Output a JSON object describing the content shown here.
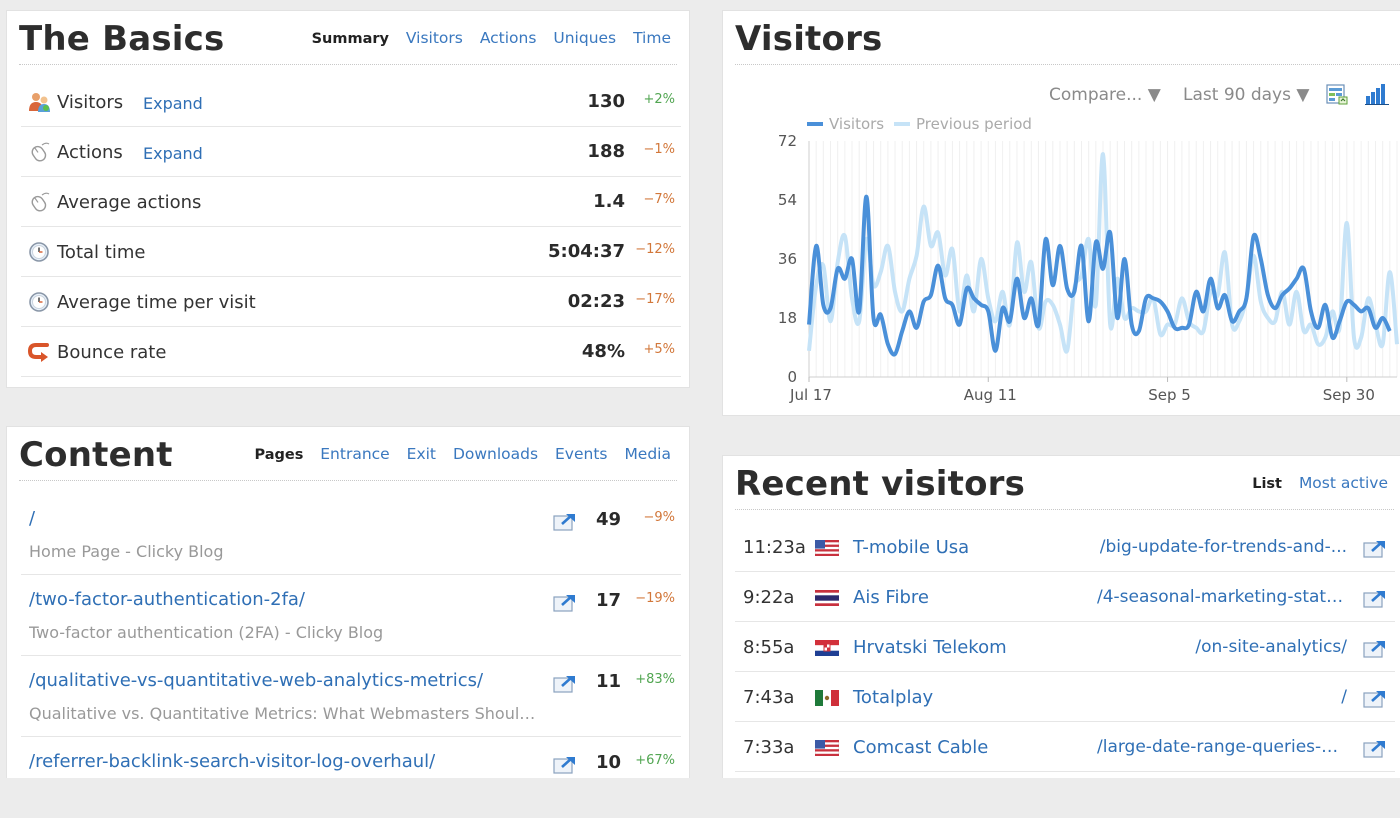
{
  "basics": {
    "title": "The Basics",
    "tabs": [
      {
        "label": "Summary",
        "active": true
      },
      {
        "label": "Visitors",
        "active": false
      },
      {
        "label": "Actions",
        "active": false
      },
      {
        "label": "Uniques",
        "active": false
      },
      {
        "label": "Time",
        "active": false
      }
    ],
    "rows": [
      {
        "icon": "visitors-icon",
        "label": "Visitors",
        "expand": "Expand",
        "value": "130",
        "change": "+2%",
        "trend": "up"
      },
      {
        "icon": "mouse-icon",
        "label": "Actions",
        "expand": "Expand",
        "value": "188",
        "change": "−1%",
        "trend": "down"
      },
      {
        "icon": "mouse-icon",
        "label": "Average actions",
        "expand": "",
        "value": "1.4",
        "change": "−7%",
        "trend": "down"
      },
      {
        "icon": "clock-icon",
        "label": "Total time",
        "expand": "",
        "value": "5:04:37",
        "change": "−12%",
        "trend": "down"
      },
      {
        "icon": "clock-icon",
        "label": "Average time per visit",
        "expand": "",
        "value": "02:23",
        "change": "−17%",
        "trend": "down"
      },
      {
        "icon": "bounce-arrow-icon",
        "label": "Bounce rate",
        "expand": "",
        "value": "48%",
        "change": "+5%",
        "trend": "down"
      }
    ]
  },
  "visitors_panel": {
    "title": "Visitors",
    "compare_label": "Compare... ▼",
    "range_label": "Last 90 days ▼",
    "export_icon": "export-icon",
    "chart_type_icon": "bar-chart-icon"
  },
  "chart_data": {
    "type": "line",
    "title": "",
    "xlabel": "",
    "ylabel": "",
    "ylim": [
      0,
      72
    ],
    "yticks": [
      0,
      18,
      36,
      54,
      72
    ],
    "xtick_labels": [
      "Jul 17",
      "Aug 11",
      "Sep 5",
      "Sep 30"
    ],
    "xtick_index": [
      0,
      25,
      50,
      75
    ],
    "grid": "vertical-days",
    "legend_position": "top-left",
    "colors": {
      "visitors": "#4a90d9",
      "previous": "#c6e3f7"
    },
    "series": [
      {
        "name": "Visitors",
        "values": [
          16,
          40,
          22,
          21,
          33,
          30,
          36,
          20,
          55,
          18,
          19,
          10,
          7,
          14,
          20,
          15,
          23,
          25,
          34,
          24,
          22,
          16,
          27,
          24,
          22,
          20,
          8,
          21,
          17,
          30,
          18,
          24,
          16,
          42,
          28,
          40,
          27,
          26,
          40,
          17,
          41,
          33,
          44,
          18,
          36,
          16,
          14,
          24,
          24,
          23,
          20,
          15,
          15,
          16,
          26,
          20,
          30,
          21,
          25,
          17,
          20,
          24,
          43,
          36,
          25,
          21,
          25,
          27,
          30,
          33,
          20,
          15,
          22,
          12,
          17,
          23,
          22,
          20,
          21,
          15,
          18,
          14
        ]
      },
      {
        "name": "Previous period",
        "values": [
          8,
          28,
          34,
          17,
          35,
          43,
          24,
          17,
          42,
          28,
          32,
          40,
          26,
          20,
          30,
          37,
          52,
          40,
          44,
          31,
          39,
          20,
          31,
          20,
          36,
          24,
          17,
          26,
          16,
          41,
          26,
          35,
          15,
          23,
          22,
          16,
          8,
          27,
          31,
          42,
          22,
          68,
          16,
          30,
          18,
          21,
          20,
          20,
          24,
          13,
          16,
          16,
          24,
          17,
          15,
          14,
          26,
          25,
          38,
          16,
          17,
          24,
          37,
          23,
          18,
          17,
          26,
          16,
          26,
          14,
          16,
          10,
          12,
          20,
          15,
          47,
          12,
          12,
          24,
          16,
          10,
          32,
          10
        ]
      }
    ]
  },
  "content": {
    "title": "Content",
    "tabs": [
      {
        "label": "Pages",
        "active": true
      },
      {
        "label": "Entrance",
        "active": false
      },
      {
        "label": "Exit",
        "active": false
      },
      {
        "label": "Downloads",
        "active": false
      },
      {
        "label": "Events",
        "active": false
      },
      {
        "label": "Media",
        "active": false
      }
    ],
    "rows": [
      {
        "path": "/",
        "title": "Home Page - Clicky Blog",
        "value": "49",
        "change": "−9%",
        "trend": "down"
      },
      {
        "path": "/two-factor-authentication-2fa/",
        "title": "Two-factor authentication (2FA) - Clicky Blog",
        "value": "17",
        "change": "−19%",
        "trend": "down"
      },
      {
        "path": "/qualitative-vs-quantitative-web-analytics-metrics/",
        "title": "Qualitative vs. Quantitative Metrics: What Webmasters Should...",
        "value": "11",
        "change": "+83%",
        "trend": "up"
      },
      {
        "path": "/referrer-backlink-search-visitor-log-overhaul/",
        "title": "",
        "value": "10",
        "change": "+67%",
        "trend": "up"
      }
    ]
  },
  "recent": {
    "title": "Recent visitors",
    "tabs": [
      {
        "label": "List",
        "active": true
      },
      {
        "label": "Most active",
        "active": false
      }
    ],
    "rows": [
      {
        "time": "11:23a",
        "flag": "us-flag-icon",
        "isp": "T-mobile Usa",
        "page": "/big-update-for-trends-and-..."
      },
      {
        "time": "9:22a",
        "flag": "th-flag-icon",
        "isp": "Ais Fibre",
        "page": "/4-seasonal-marketing-stats..."
      },
      {
        "time": "8:55a",
        "flag": "hr-flag-icon",
        "isp": "Hrvatski Telekom",
        "page": "/on-site-analytics/"
      },
      {
        "time": "7:43a",
        "flag": "mx-flag-icon",
        "isp": "Totalplay",
        "page": "/"
      },
      {
        "time": "7:33a",
        "flag": "us-flag-icon",
        "isp": "Comcast Cable",
        "page": "/large-date-range-queries-n..."
      }
    ]
  }
}
